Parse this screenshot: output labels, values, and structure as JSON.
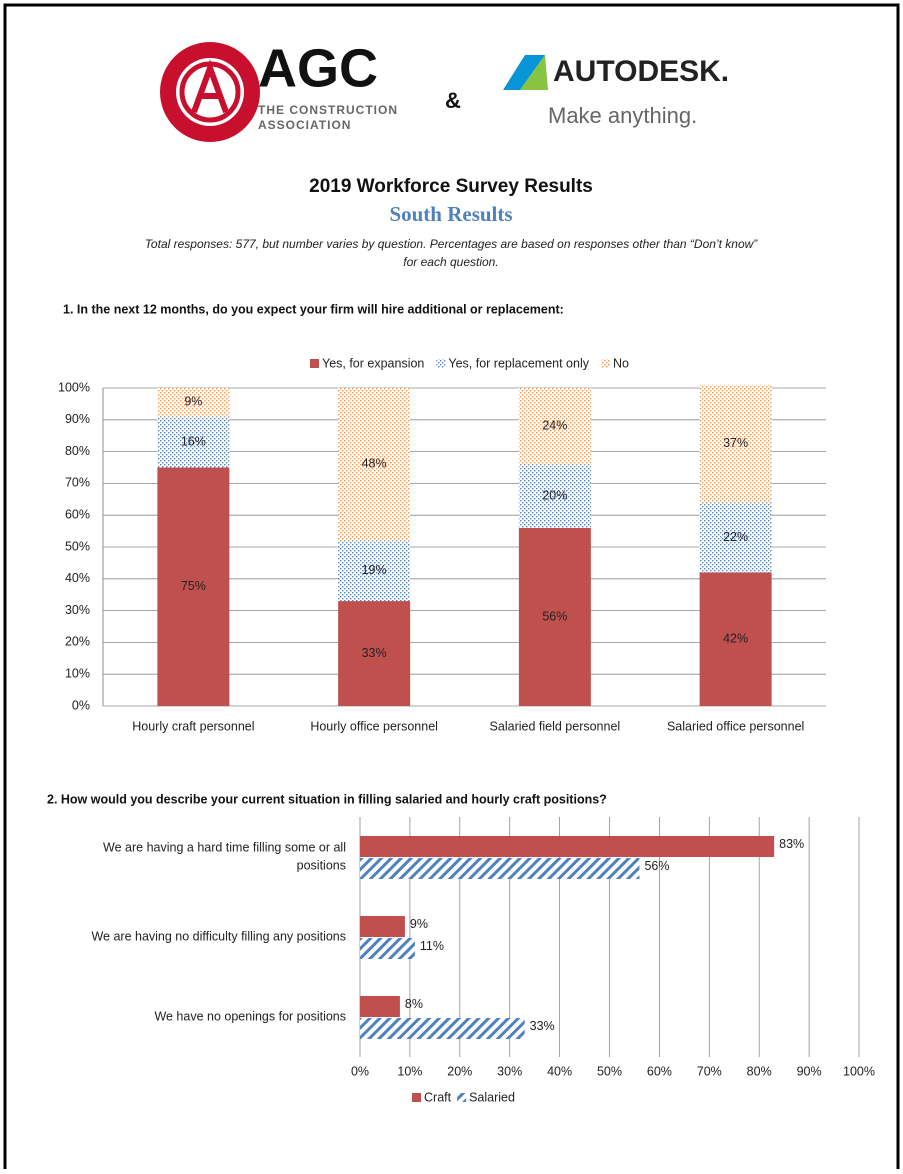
{
  "header": {
    "agc_logo": "AGC",
    "agc_line1": "THE CONSTRUCTION",
    "agc_line2": "ASSOCIATION",
    "ampersand": "&",
    "autodesk_logo": "AUTODESK.",
    "autodesk_tagline": "Make anything."
  },
  "title": "2019 Workforce Survey Results",
  "subtitle": "South Results",
  "note_lines": [
    "Total responses: 577, but number varies by question. Percentages are based on responses other than “Don’t know”",
    "for each question."
  ],
  "chart_data": [
    {
      "type": "stacked_bar",
      "title": "1.   In the next 12 months, do you expect your firm will hire additional or replacement:",
      "categories": [
        "Hourly craft personnel",
        "Hourly office personnel",
        "Salaried field personnel",
        "Salaried office personnel"
      ],
      "series": [
        {
          "name": "Yes, for expansion",
          "color": "#c0504d",
          "pattern": "solid",
          "values": [
            75,
            33,
            56,
            42
          ],
          "value_labels": [
            "75%",
            "33%",
            "56%",
            "42%"
          ]
        },
        {
          "name": "Yes, for replacement only",
          "color": "#4f81bd",
          "pattern": "dots",
          "values": [
            16,
            19,
            20,
            22
          ],
          "value_labels": [
            "16%",
            "19%",
            "20%",
            "22%"
          ]
        },
        {
          "name": "No",
          "color": "#f79646",
          "pattern": "dots",
          "values": [
            9,
            48,
            24,
            37
          ],
          "value_labels": [
            "9%",
            "48%",
            "24%",
            "37%"
          ]
        }
      ],
      "ylim": [
        0,
        100
      ],
      "yticks": [
        {
          "value": 0,
          "label": "0%"
        },
        {
          "value": 10,
          "label": "10%"
        },
        {
          "value": 20,
          "label": "20%"
        },
        {
          "value": 30,
          "label": "30%"
        },
        {
          "value": 40,
          "label": "40%"
        },
        {
          "value": 50,
          "label": "50%"
        },
        {
          "value": 60,
          "label": "60%"
        },
        {
          "value": 70,
          "label": "70%"
        },
        {
          "value": 80,
          "label": "80%"
        },
        {
          "value": 90,
          "label": "90%"
        },
        {
          "value": 100,
          "label": "100%"
        }
      ],
      "grid": true,
      "legend": "top"
    },
    {
      "type": "horizontal_bar",
      "title": "2. How would you describe your current situation in filling salaried and hourly craft positions?",
      "categories": [
        [
          "We are having a hard time filling some or all",
          "positions"
        ],
        [
          "We are having no difficulty filling any positions"
        ],
        [
          "We have no openings for positions"
        ]
      ],
      "series": [
        {
          "name": "Craft",
          "color": "#c0504d",
          "pattern": "solid",
          "values": [
            83,
            9,
            8
          ],
          "value_labels": [
            "83%",
            "9%",
            "8%"
          ]
        },
        {
          "name": "Salaried",
          "color": "#4f81bd",
          "pattern": "hatch",
          "values": [
            56,
            11,
            33
          ],
          "value_labels": [
            "56%",
            "11%",
            "33%"
          ]
        }
      ],
      "xlim": [
        0,
        100
      ],
      "xticks": [
        {
          "value": 0,
          "label": "0%"
        },
        {
          "value": 10,
          "label": "10%"
        },
        {
          "value": 20,
          "label": "20%"
        },
        {
          "value": 30,
          "label": "30%"
        },
        {
          "value": 40,
          "label": "40%"
        },
        {
          "value": 50,
          "label": "50%"
        },
        {
          "value": 60,
          "label": "60%"
        },
        {
          "value": 70,
          "label": "70%"
        },
        {
          "value": 80,
          "label": "80%"
        },
        {
          "value": 90,
          "label": "90%"
        },
        {
          "value": 100,
          "label": "100%"
        }
      ],
      "grid": true,
      "legend": "bottom"
    }
  ]
}
